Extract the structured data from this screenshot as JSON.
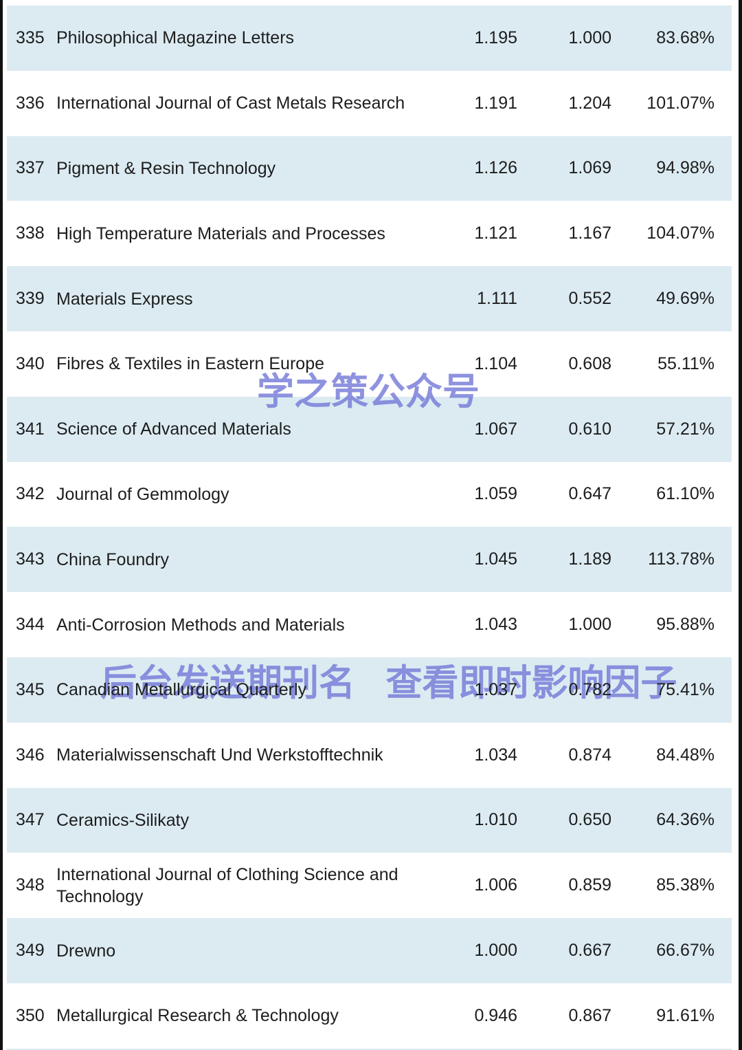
{
  "colors": {
    "row_highlight": "#dcebf2",
    "row_plain": "#ffffff",
    "text": "#1d1d1d",
    "watermark": "#767bd8",
    "page_edge": "#111111"
  },
  "watermarks": {
    "brand": {
      "text": "学之策公众号"
    },
    "cta": {
      "text": "后台发送期刊名 查看即时影响因子"
    }
  },
  "table": {
    "rows": [
      {
        "rank": "335",
        "journal": "Philosophical Magazine Letters",
        "value1": "1.195",
        "value2": "1.000",
        "percent": "83.68%"
      },
      {
        "rank": "336",
        "journal": "International Journal of Cast Metals Research",
        "value1": "1.191",
        "value2": "1.204",
        "percent": "101.07%"
      },
      {
        "rank": "337",
        "journal": "Pigment & Resin Technology",
        "value1": "1.126",
        "value2": "1.069",
        "percent": "94.98%"
      },
      {
        "rank": "338",
        "journal": "High Temperature Materials and Processes",
        "value1": "1.121",
        "value2": "1.167",
        "percent": "104.07%"
      },
      {
        "rank": "339",
        "journal": "Materials Express",
        "value1": "1.111",
        "value2": "0.552",
        "percent": "49.69%"
      },
      {
        "rank": "340",
        "journal": "Fibres & Textiles in Eastern Europe",
        "value1": "1.104",
        "value2": "0.608",
        "percent": "55.11%"
      },
      {
        "rank": "341",
        "journal": "Science of Advanced Materials",
        "value1": "1.067",
        "value2": "0.610",
        "percent": "57.21%"
      },
      {
        "rank": "342",
        "journal": "Journal of Gemmology",
        "value1": "1.059",
        "value2": "0.647",
        "percent": "61.10%"
      },
      {
        "rank": "343",
        "journal": "China Foundry",
        "value1": "1.045",
        "value2": "1.189",
        "percent": "113.78%"
      },
      {
        "rank": "344",
        "journal": "Anti-Corrosion Methods and Materials",
        "value1": "1.043",
        "value2": "1.000",
        "percent": "95.88%"
      },
      {
        "rank": "345",
        "journal": "Canadian Metallurgical Quarterly",
        "value1": "1.037",
        "value2": "0.782",
        "percent": "75.41%"
      },
      {
        "rank": "346",
        "journal": "Materialwissenschaft Und Werkstofftechnik",
        "value1": "1.034",
        "value2": "0.874",
        "percent": "84.48%"
      },
      {
        "rank": "347",
        "journal": "Ceramics-Silikaty",
        "value1": "1.010",
        "value2": "0.650",
        "percent": "64.36%"
      },
      {
        "rank": "348",
        "journal": "International Journal of Clothing Science and Technology",
        "value1": "1.006",
        "value2": "0.859",
        "percent": "85.38%"
      },
      {
        "rank": "349",
        "journal": "Drewno",
        "value1": "1.000",
        "value2": "0.667",
        "percent": "66.67%"
      },
      {
        "rank": "350",
        "journal": "Metallurgical Research & Technology",
        "value1": "0.946",
        "value2": "0.867",
        "percent": "91.61%"
      }
    ]
  }
}
